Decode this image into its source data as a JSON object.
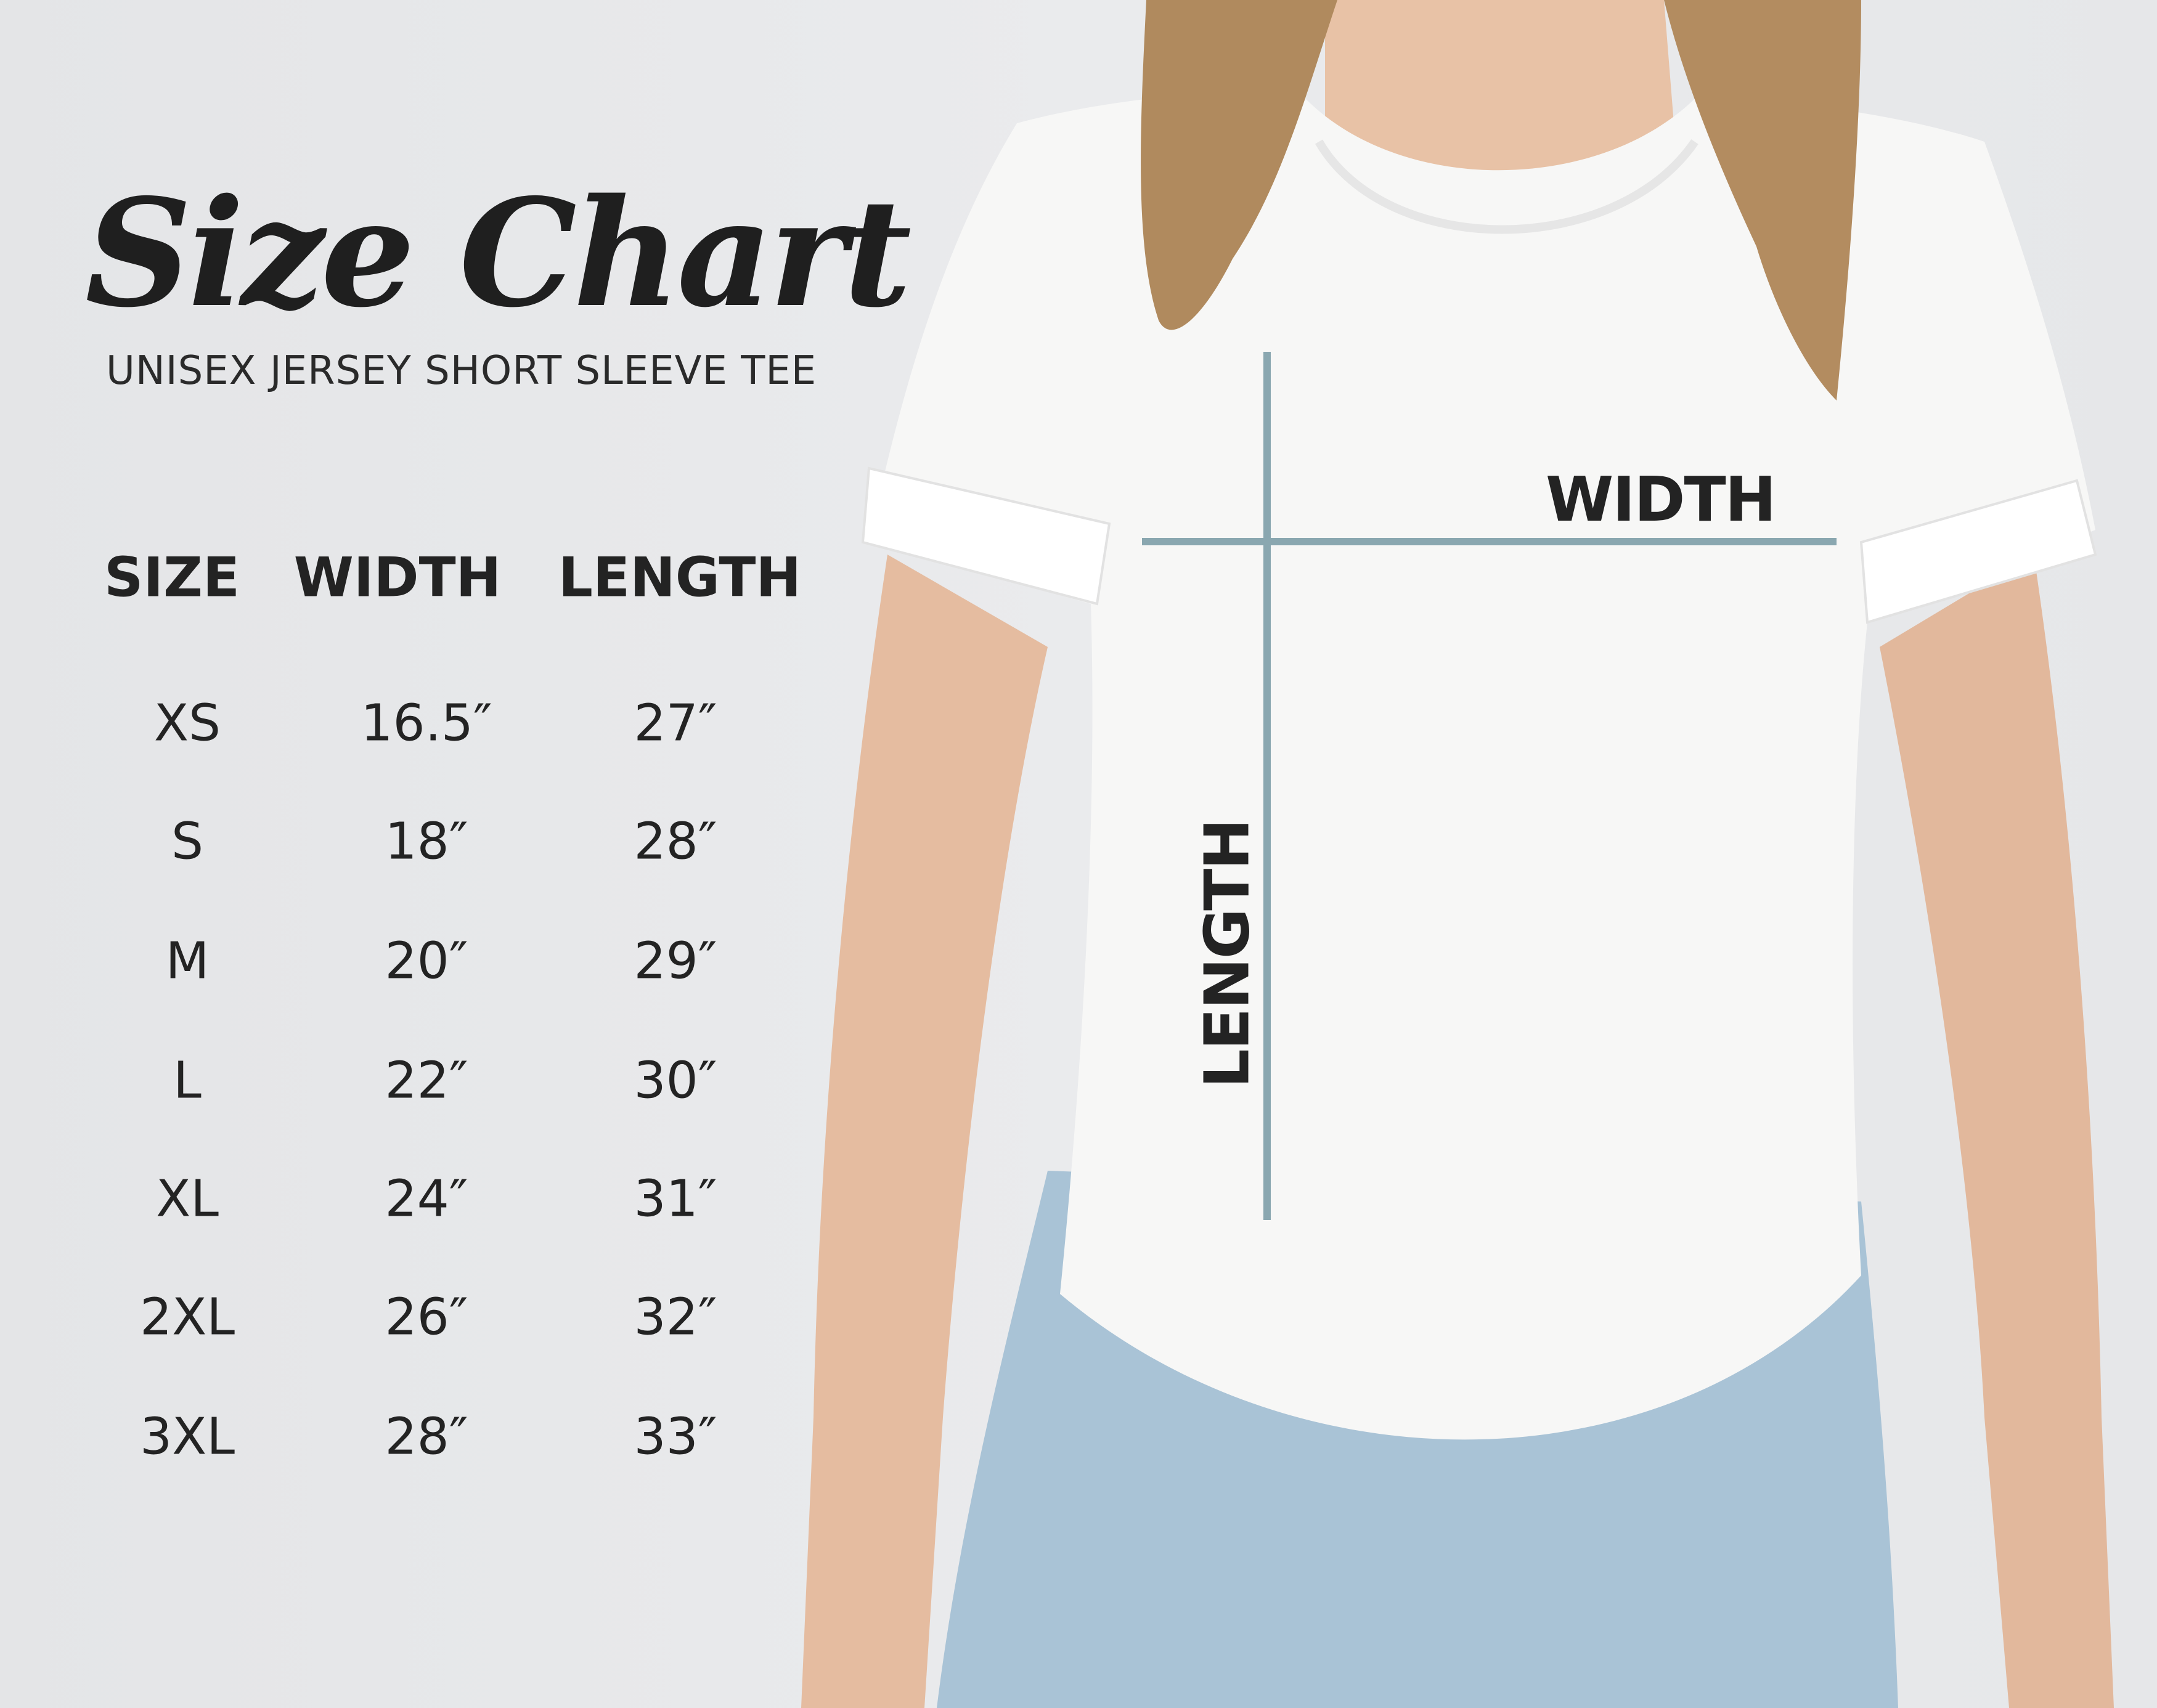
{
  "title": "Size Chart",
  "subtitle": "UNISEX JERSEY SHORT SLEEVE TEE",
  "table": {
    "headers": [
      "SIZE",
      "WIDTH",
      "LENGTH"
    ],
    "rows": [
      {
        "size": "XS",
        "width": "16.5″",
        "length": "27″"
      },
      {
        "size": "S",
        "width": "18″",
        "length": "28″"
      },
      {
        "size": "M",
        "width": "20″",
        "length": "29″"
      },
      {
        "size": "L",
        "width": "22″",
        "length": "30″"
      },
      {
        "size": "XL",
        "width": "24″",
        "length": "31″"
      },
      {
        "size": "2XL",
        "width": "26″",
        "length": "32″"
      },
      {
        "size": "3XL",
        "width": "28″",
        "length": "33″"
      }
    ]
  },
  "diagram": {
    "width_label": "WIDTH",
    "length_label": "LENGTH",
    "line_color": "#8aa7b0"
  }
}
